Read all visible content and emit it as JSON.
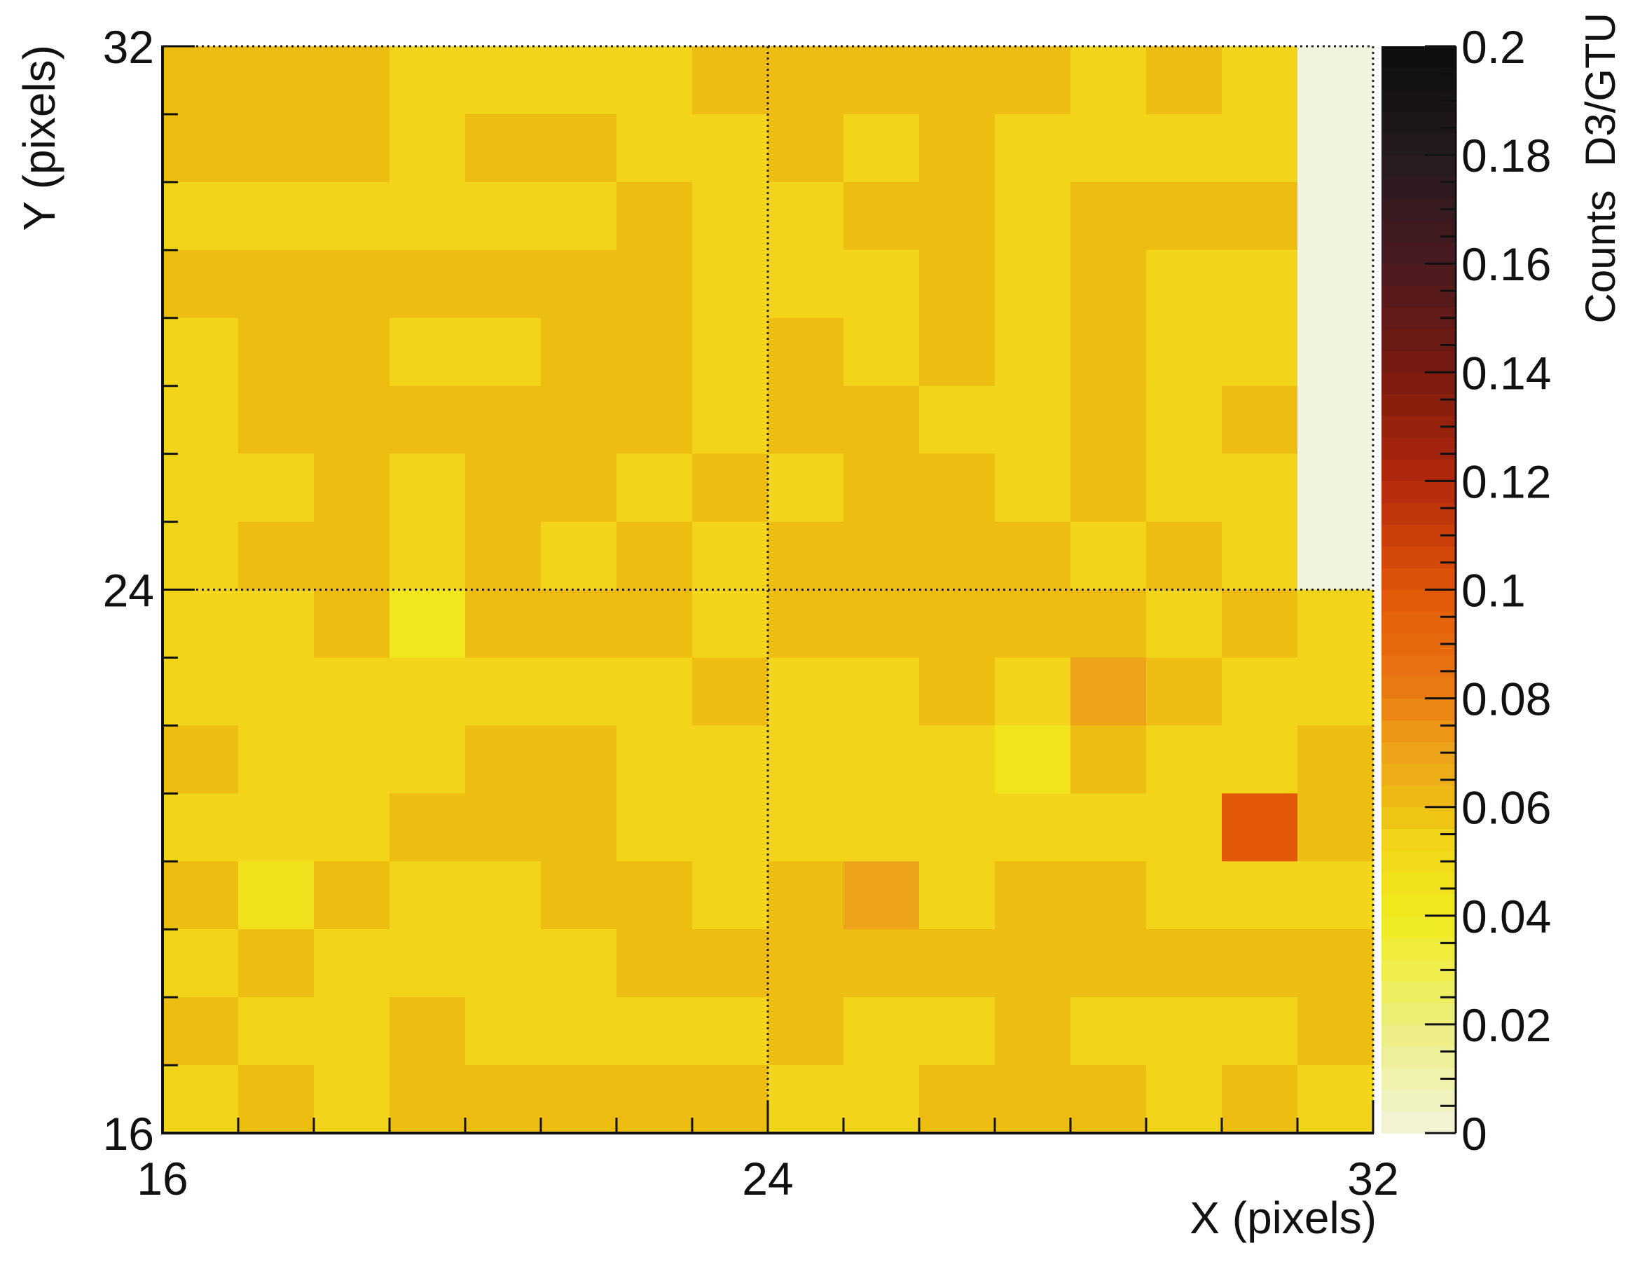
{
  "chart_data": {
    "type": "heatmap",
    "title": "",
    "xlabel": "X (pixels)",
    "ylabel": "Y (pixels)",
    "zlabel": "Counts  D3/GTU",
    "xlim": [
      16,
      32
    ],
    "ylim": [
      16,
      32
    ],
    "zlim": [
      0,
      0.2
    ],
    "x_ticks": [
      "16",
      "24",
      "32"
    ],
    "y_ticks": [
      "32",
      "24",
      "16"
    ],
    "z_ticks": [
      "0.2",
      "0.18",
      "0.16",
      "0.14",
      "0.12",
      "0.1",
      "0.08",
      "0.06",
      "0.04",
      "0.02",
      "0"
    ],
    "grid": "dotted lines at x=24 and y=24",
    "bin_size": 1,
    "rows_note": "values[r][c]: r=0 is the top row (y 31-32), c=0 is the leftmost column (x 16-17)",
    "values": [
      [
        0.06,
        0.06,
        0.06,
        0.054,
        0.054,
        0.054,
        0.054,
        0.06,
        0.06,
        0.06,
        0.06,
        0.06,
        0.054,
        0.06,
        0.054,
        0.0
      ],
      [
        0.06,
        0.06,
        0.06,
        0.054,
        0.06,
        0.06,
        0.054,
        0.054,
        0.06,
        0.054,
        0.06,
        0.054,
        0.054,
        0.054,
        0.054,
        0.0
      ],
      [
        0.054,
        0.054,
        0.054,
        0.054,
        0.054,
        0.054,
        0.06,
        0.054,
        0.054,
        0.06,
        0.06,
        0.054,
        0.06,
        0.06,
        0.06,
        0.0
      ],
      [
        0.06,
        0.06,
        0.06,
        0.06,
        0.06,
        0.06,
        0.06,
        0.054,
        0.054,
        0.054,
        0.06,
        0.054,
        0.06,
        0.054,
        0.054,
        0.0
      ],
      [
        0.054,
        0.06,
        0.06,
        0.054,
        0.054,
        0.06,
        0.06,
        0.054,
        0.06,
        0.054,
        0.06,
        0.054,
        0.06,
        0.054,
        0.054,
        0.0
      ],
      [
        0.054,
        0.06,
        0.06,
        0.06,
        0.06,
        0.06,
        0.06,
        0.054,
        0.06,
        0.06,
        0.054,
        0.054,
        0.06,
        0.054,
        0.06,
        0.0
      ],
      [
        0.054,
        0.054,
        0.06,
        0.054,
        0.06,
        0.06,
        0.054,
        0.06,
        0.054,
        0.06,
        0.06,
        0.054,
        0.06,
        0.054,
        0.054,
        0.0
      ],
      [
        0.054,
        0.06,
        0.06,
        0.054,
        0.06,
        0.054,
        0.06,
        0.054,
        0.06,
        0.06,
        0.06,
        0.06,
        0.054,
        0.06,
        0.054,
        0.0
      ],
      [
        0.054,
        0.054,
        0.06,
        0.042,
        0.06,
        0.06,
        0.06,
        0.054,
        0.06,
        0.06,
        0.06,
        0.06,
        0.06,
        0.054,
        0.06,
        0.054
      ],
      [
        0.054,
        0.054,
        0.054,
        0.054,
        0.054,
        0.054,
        0.054,
        0.06,
        0.054,
        0.054,
        0.06,
        0.054,
        0.07,
        0.06,
        0.054,
        0.054
      ],
      [
        0.06,
        0.054,
        0.054,
        0.054,
        0.06,
        0.06,
        0.054,
        0.054,
        0.054,
        0.054,
        0.054,
        0.044,
        0.06,
        0.054,
        0.054,
        0.06
      ],
      [
        0.054,
        0.054,
        0.054,
        0.06,
        0.06,
        0.06,
        0.054,
        0.054,
        0.054,
        0.054,
        0.054,
        0.054,
        0.054,
        0.054,
        0.1,
        0.06
      ],
      [
        0.06,
        0.046,
        0.06,
        0.054,
        0.054,
        0.06,
        0.06,
        0.054,
        0.06,
        0.07,
        0.054,
        0.06,
        0.06,
        0.054,
        0.054,
        0.054
      ],
      [
        0.054,
        0.06,
        0.054,
        0.054,
        0.054,
        0.054,
        0.06,
        0.06,
        0.06,
        0.06,
        0.06,
        0.06,
        0.06,
        0.06,
        0.06,
        0.06
      ],
      [
        0.06,
        0.054,
        0.054,
        0.06,
        0.054,
        0.054,
        0.054,
        0.054,
        0.06,
        0.054,
        0.054,
        0.06,
        0.054,
        0.054,
        0.054,
        0.06
      ],
      [
        0.054,
        0.06,
        0.054,
        0.06,
        0.06,
        0.06,
        0.06,
        0.06,
        0.054,
        0.054,
        0.06,
        0.06,
        0.06,
        0.054,
        0.06,
        0.054
      ]
    ],
    "colorscale": [
      {
        "v": 0.0,
        "color": "#f1f3dd"
      },
      {
        "v": 0.02,
        "color": "#ecef7c"
      },
      {
        "v": 0.04,
        "color": "#f0ea1e"
      },
      {
        "v": 0.054,
        "color": "#f2d51a"
      },
      {
        "v": 0.06,
        "color": "#eebd12"
      },
      {
        "v": 0.07,
        "color": "#eda41a"
      },
      {
        "v": 0.08,
        "color": "#ea7e12"
      },
      {
        "v": 0.1,
        "color": "#e25708"
      },
      {
        "v": 0.12,
        "color": "#b4280d"
      },
      {
        "v": 0.14,
        "color": "#7a1b0f"
      },
      {
        "v": 0.16,
        "color": "#4a1a20"
      },
      {
        "v": 0.18,
        "color": "#241c1f"
      },
      {
        "v": 0.2,
        "color": "#0c0c0c"
      }
    ]
  }
}
